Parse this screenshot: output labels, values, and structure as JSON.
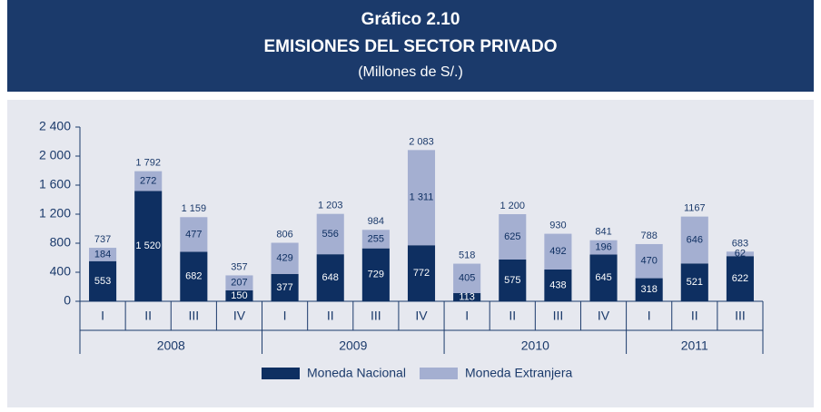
{
  "chart_data": {
    "type": "stacked_bar",
    "label": "Gráfico 2.10",
    "title": "EMISIONES DEL SECTOR PRIVADO",
    "subtitle": "(Millones de S/.)",
    "groups": [
      {
        "name": "2008",
        "categories": [
          "I",
          "II",
          "III",
          "IV"
        ]
      },
      {
        "name": "2009",
        "categories": [
          "I",
          "II",
          "III",
          "IV"
        ]
      },
      {
        "name": "2010",
        "categories": [
          "I",
          "II",
          "III",
          "IV"
        ]
      },
      {
        "name": "2011",
        "categories": [
          "I",
          "II",
          "III"
        ]
      }
    ],
    "series": [
      {
        "name": "Moneda Nacional",
        "color": "#0e2f61",
        "label_color": "#ffffff",
        "values": [
          553,
          1520,
          682,
          150,
          377,
          648,
          729,
          772,
          113,
          575,
          438,
          645,
          318,
          521,
          622
        ],
        "value_labels": [
          "553",
          "1 520",
          "682",
          "150",
          "377",
          "648",
          "729",
          "772",
          "113",
          "575",
          "438",
          "645",
          "318",
          "521",
          "622"
        ]
      },
      {
        "name": "Moneda Extranjera",
        "color": "#a4afd1",
        "label_color": "#0e2f61",
        "values": [
          184,
          272,
          477,
          207,
          429,
          556,
          255,
          1311,
          405,
          625,
          492,
          196,
          470,
          646,
          62
        ],
        "value_labels": [
          "184",
          "272",
          "477",
          "207",
          "429",
          "556",
          "255",
          "1 311",
          "405",
          "625",
          "492",
          "196",
          "470",
          "646",
          "62"
        ]
      }
    ],
    "totals": [
      737,
      1792,
      1159,
      357,
      806,
      1203,
      984,
      2083,
      518,
      1200,
      930,
      841,
      788,
      1167,
      683
    ],
    "total_labels": [
      "737",
      "1 792",
      "1 159",
      "357",
      "806",
      "1 203",
      "984",
      "2 083",
      "518",
      "1 200",
      "930",
      "841",
      "788",
      "1167",
      "683"
    ],
    "ylim": [
      0,
      2400
    ],
    "yticks": [
      0,
      400,
      800,
      {
        "value": 1200,
        "label": "1 200"
      },
      {
        "value": 1600,
        "label": "1 600"
      },
      {
        "value": 2000,
        "label": "2 000"
      },
      {
        "value": 2400,
        "label": "2 400"
      }
    ],
    "grid": false
  }
}
